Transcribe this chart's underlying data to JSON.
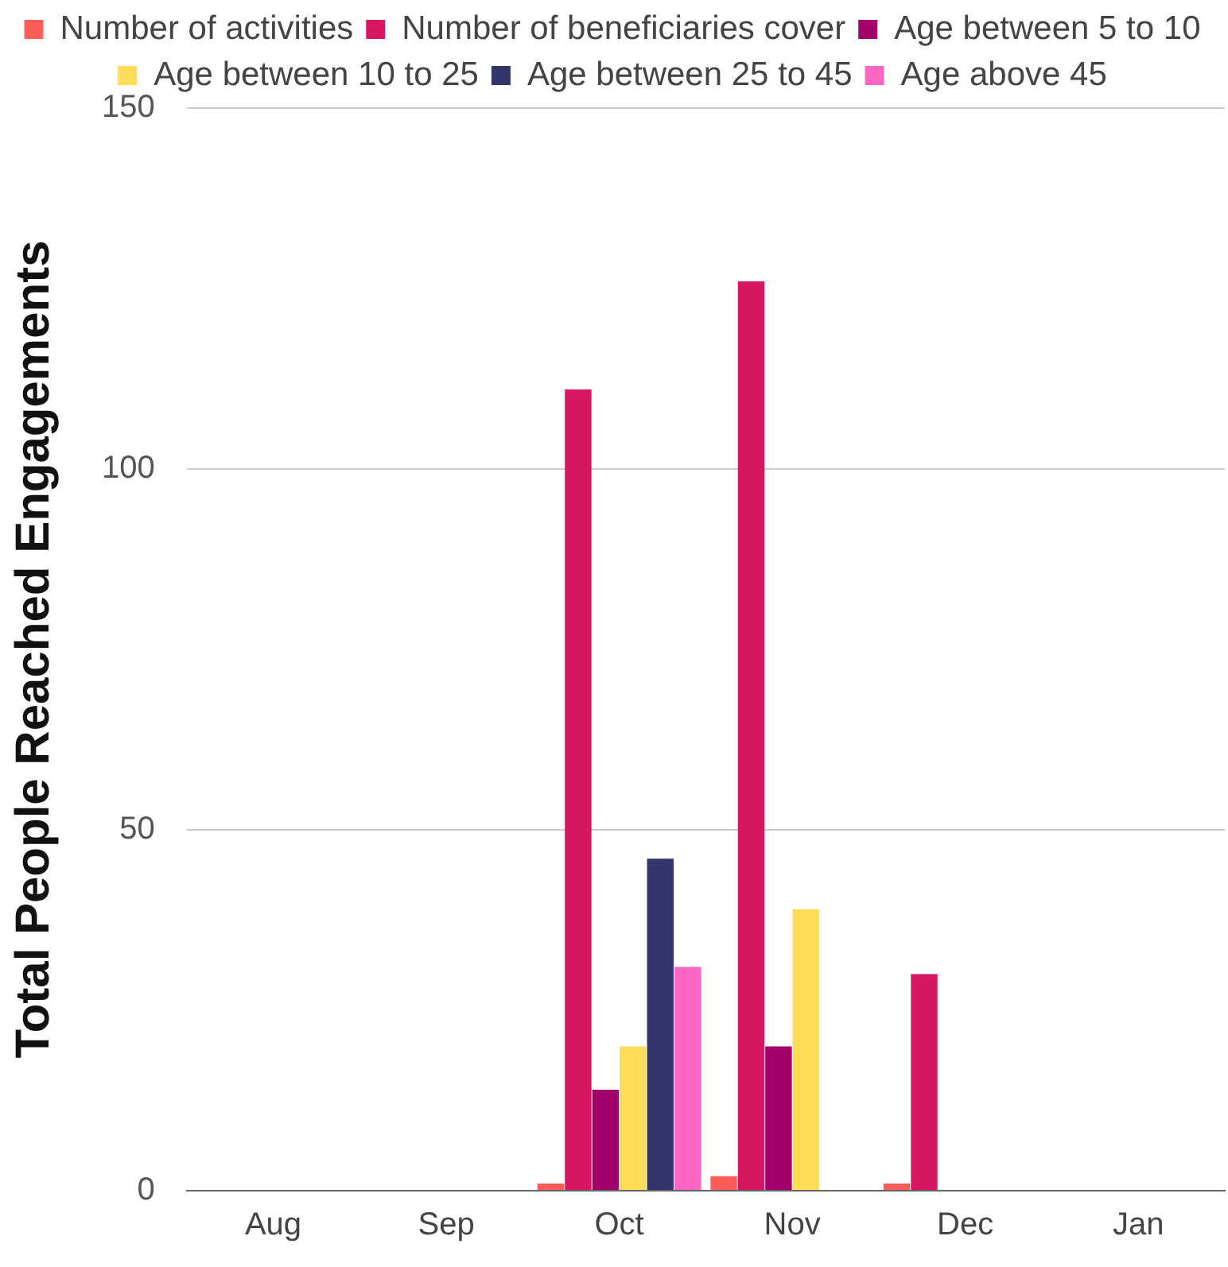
{
  "chart_data": {
    "type": "bar",
    "ylabel": "Total People Reached Engagements",
    "categories": [
      "Aug",
      "Sep",
      "Oct",
      "Nov",
      "Dec",
      "Jan"
    ],
    "series": [
      {
        "name": "Number of activities",
        "color": "#fd5c58",
        "values": [
          null,
          null,
          1,
          2,
          1,
          null
        ]
      },
      {
        "name": "Number of beneficiaries cover",
        "color": "#d81763",
        "values": [
          null,
          null,
          111,
          126,
          30,
          null
        ]
      },
      {
        "name": "Age between 5 to 10",
        "color": "#a3006c",
        "values": [
          null,
          null,
          14,
          20,
          null,
          null
        ]
      },
      {
        "name": "Age between 10 to 25",
        "color": "#fedc57",
        "values": [
          null,
          null,
          20,
          39,
          null,
          null
        ]
      },
      {
        "name": "Age between 25 to 45",
        "color": "#32366c",
        "values": [
          null,
          null,
          46,
          null,
          null,
          null
        ]
      },
      {
        "name": "Age above 45",
        "color": "#ff65c3",
        "values": [
          null,
          null,
          31,
          null,
          null,
          null
        ]
      }
    ],
    "ylim": [
      0,
      150
    ],
    "yticks": [
      0,
      50,
      100,
      150
    ],
    "grid": "y",
    "legend": "top"
  }
}
